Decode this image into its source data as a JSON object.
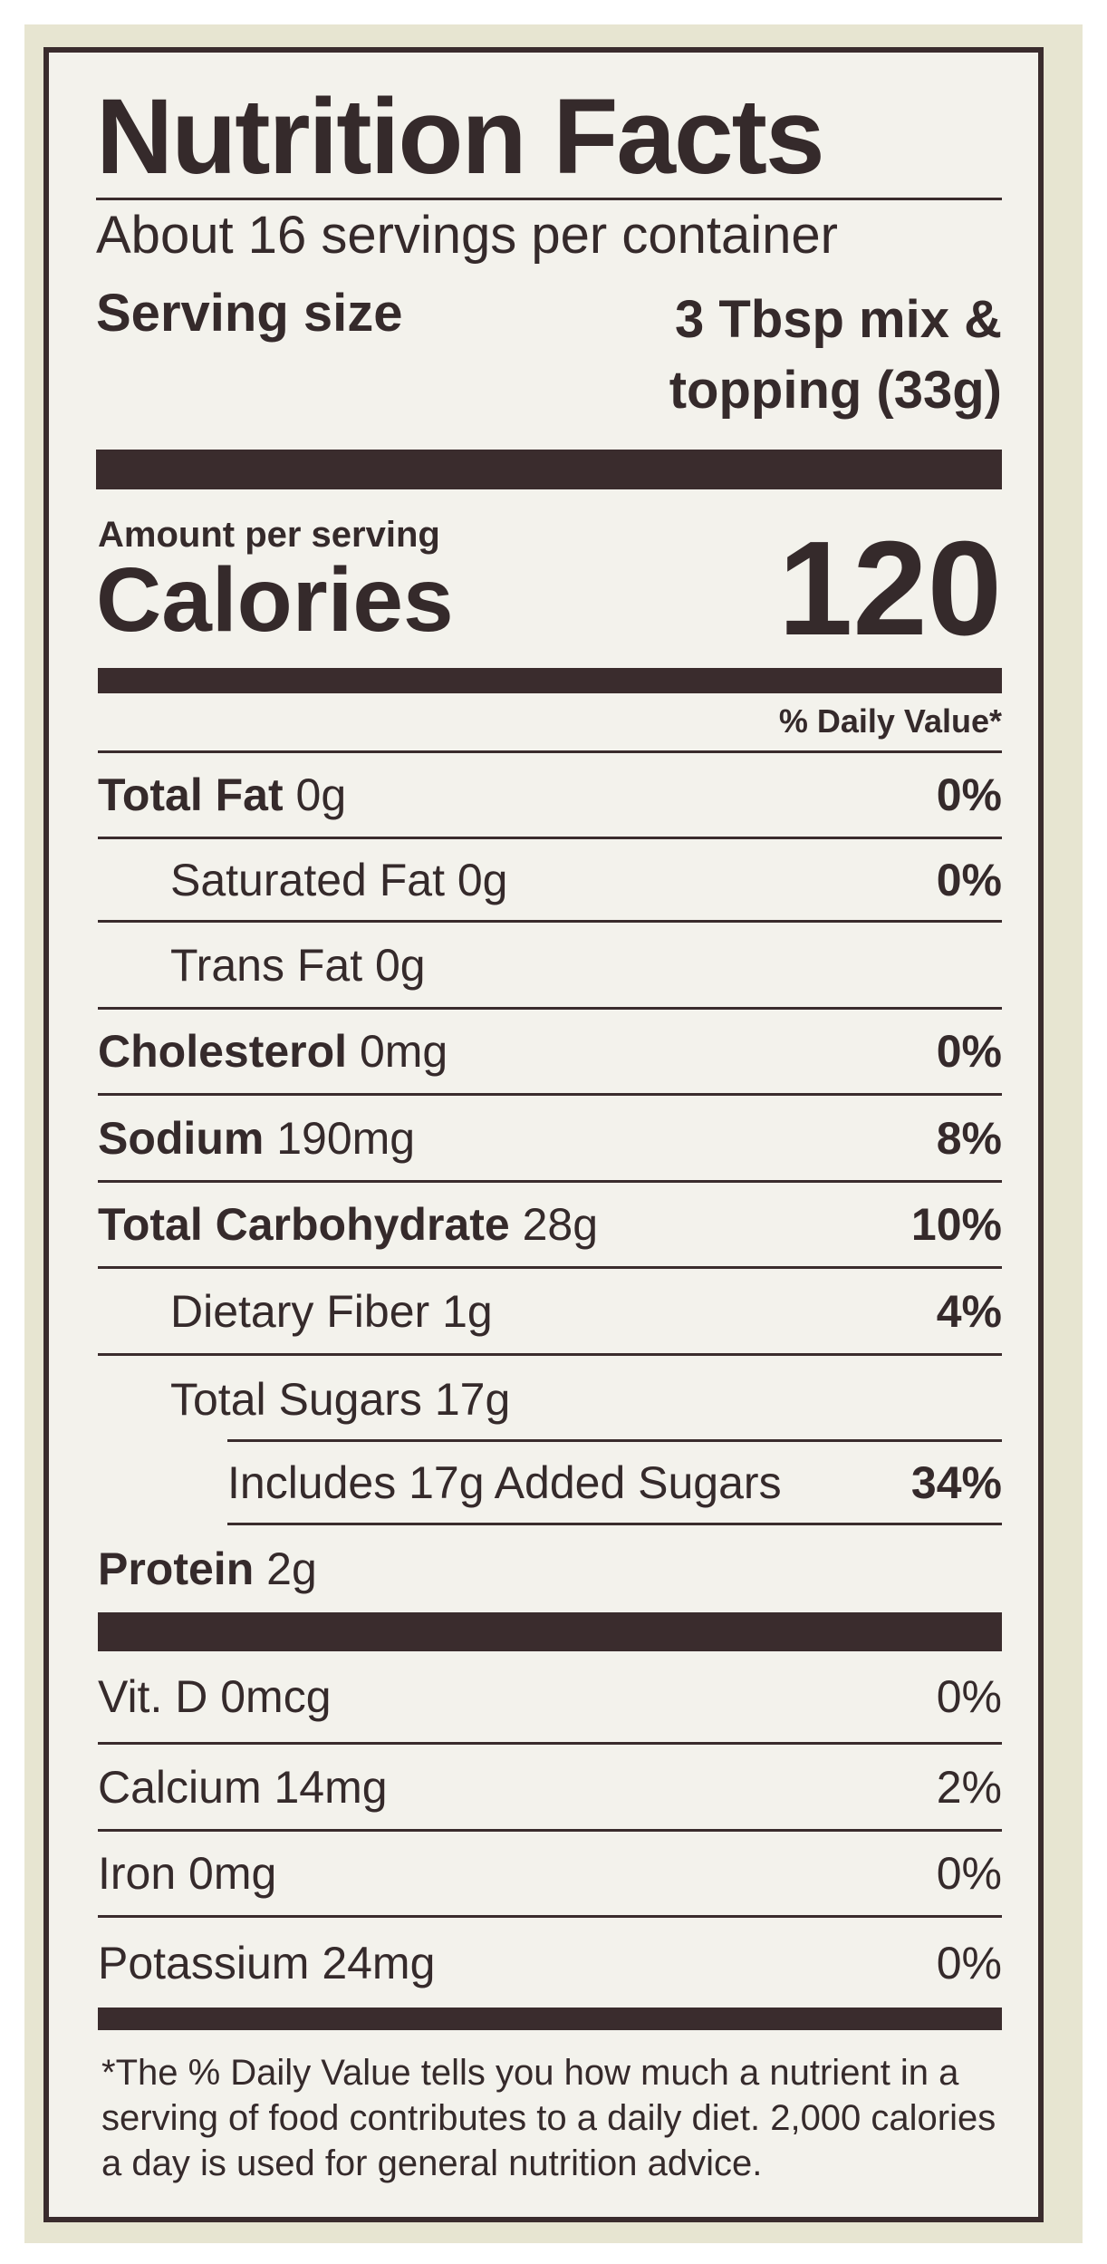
{
  "title": "Nutrition Facts",
  "servings_per_container": "About 16 servings per container",
  "serving_size": {
    "label": "Serving size",
    "value": "3 Tbsp mix & topping (33g)"
  },
  "amount_per_serving": "Amount per serving",
  "calories": {
    "label": "Calories",
    "value": "120"
  },
  "daily_value_header": "% Daily Value*",
  "nutrients": [
    {
      "name": "Total Fat",
      "amount": "0g",
      "dv": "0%"
    },
    {
      "name": "Saturated Fat",
      "amount": "0g",
      "dv": "0%"
    },
    {
      "name": "Trans Fat",
      "amount": "0g",
      "dv": ""
    },
    {
      "name": "Cholesterol",
      "amount": "0mg",
      "dv": "0%"
    },
    {
      "name": "Sodium",
      "amount": "190mg",
      "dv": "8%"
    },
    {
      "name": "Total Carbohydrate",
      "amount": "28g",
      "dv": "10%"
    },
    {
      "name": "Dietary Fiber",
      "amount": "1g",
      "dv": "4%"
    },
    {
      "name": "Total Sugars",
      "amount": "17g",
      "dv": ""
    },
    {
      "name": "Includes 17g Added Sugars",
      "amount": "",
      "dv": "34%"
    },
    {
      "name": "Protein",
      "amount": "2g",
      "dv": ""
    }
  ],
  "vitamins": [
    {
      "name": "Vit. D 0mcg",
      "dv": "0%"
    },
    {
      "name": "Calcium 14mg",
      "dv": "2%"
    },
    {
      "name": "Iron 0mg",
      "dv": "0%"
    },
    {
      "name": "Potassium 24mg",
      "dv": "0%"
    }
  ],
  "footnote": "*The % Daily Value tells you how much a nutrient in a serving of food contributes to a daily diet. 2,000 calories a day is used for general nutrition advice.",
  "colors": {
    "ink": "#3a2c2d",
    "label_bg": "#f3f2ec",
    "package_bg": "#e7e5d1"
  }
}
